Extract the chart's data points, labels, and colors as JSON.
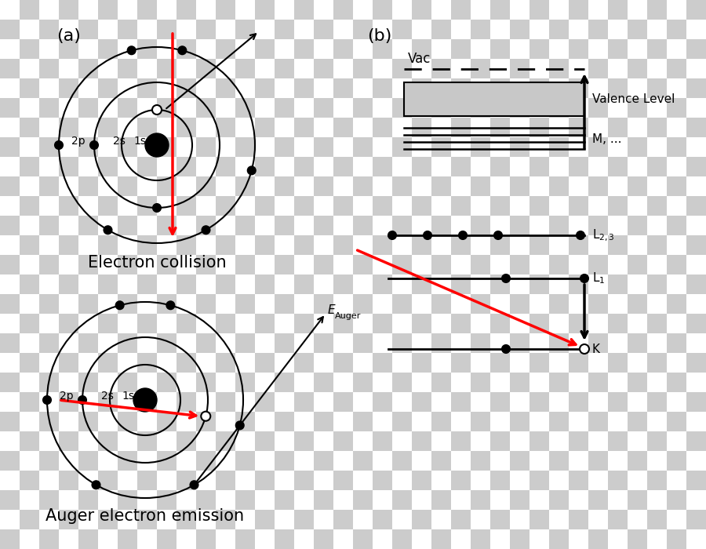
{
  "bg_color": "#ffffff",
  "gray_fill": "#c8c8c8",
  "label_a": "(a)",
  "label_b": "(b)",
  "title_top": "Electron collision",
  "title_bottom": "Auger electron emission",
  "vac_label": "Vac",
  "valence_label": "Valence Level",
  "M_label": "M, ...",
  "L23_label": "L$_{2,3}$",
  "L1_label": "L$_1$",
  "K_label": "K",
  "E_auger_label": "E",
  "E_auger_sub": "Auger",
  "checker_light": "#ffffff",
  "checker_dark": "#cccccc",
  "checker_size": 25
}
